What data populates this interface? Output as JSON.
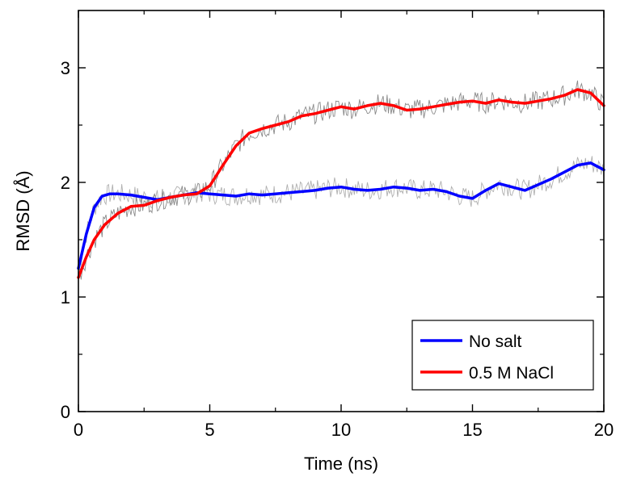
{
  "chart_data": {
    "type": "line",
    "title": "",
    "xlabel": "Time (ns)",
    "ylabel": "RMSD (Å)",
    "xlim": [
      0,
      20
    ],
    "ylim": [
      0,
      3.5
    ],
    "x_ticks": [
      0,
      5,
      10,
      15,
      20
    ],
    "x_tick_labels": [
      "0",
      "5",
      "10",
      "15",
      "20"
    ],
    "y_ticks": [
      0,
      1,
      2,
      3
    ],
    "y_tick_labels": [
      "0",
      "1",
      "2",
      "3"
    ],
    "grid": false,
    "legend": {
      "placement": "bottom-right",
      "entries": [
        "No salt",
        "0.5 M NaCl"
      ]
    },
    "series": [
      {
        "name": "No salt",
        "color": "#0000ff",
        "x": [
          0,
          0.3,
          0.6,
          0.9,
          1.2,
          1.5,
          2,
          2.5,
          3,
          3.5,
          4,
          4.5,
          5,
          5.5,
          6,
          6.5,
          7,
          7.5,
          8,
          8.5,
          9,
          9.5,
          10,
          10.5,
          11,
          11.5,
          12,
          12.5,
          13,
          13.5,
          14,
          14.5,
          15,
          15.5,
          16,
          16.5,
          17,
          17.5,
          18,
          18.5,
          19,
          19.5,
          20
        ],
        "values": [
          1.25,
          1.55,
          1.78,
          1.88,
          1.9,
          1.9,
          1.89,
          1.87,
          1.85,
          1.87,
          1.89,
          1.91,
          1.9,
          1.89,
          1.88,
          1.9,
          1.89,
          1.9,
          1.91,
          1.92,
          1.93,
          1.95,
          1.96,
          1.94,
          1.93,
          1.94,
          1.96,
          1.95,
          1.93,
          1.94,
          1.92,
          1.88,
          1.86,
          1.93,
          1.99,
          1.96,
          1.93,
          1.98,
          2.03,
          2.09,
          2.15,
          2.17,
          2.11
        ]
      },
      {
        "name": "0.5 M NaCl",
        "color": "#ff0000",
        "x": [
          0,
          0.3,
          0.6,
          1,
          1.5,
          2,
          2.5,
          3,
          3.5,
          4,
          4.5,
          5,
          5.5,
          6,
          6.5,
          7,
          7.5,
          8,
          8.5,
          9,
          9.5,
          10,
          10.5,
          11,
          11.5,
          12,
          12.5,
          13,
          13.5,
          14,
          14.5,
          15,
          15.5,
          16,
          16.5,
          17,
          17.5,
          18,
          18.5,
          19,
          19.5,
          20
        ],
        "values": [
          1.17,
          1.35,
          1.5,
          1.63,
          1.73,
          1.79,
          1.8,
          1.84,
          1.87,
          1.89,
          1.9,
          1.97,
          2.15,
          2.32,
          2.43,
          2.47,
          2.5,
          2.53,
          2.58,
          2.6,
          2.63,
          2.66,
          2.64,
          2.67,
          2.69,
          2.67,
          2.63,
          2.64,
          2.66,
          2.68,
          2.7,
          2.71,
          2.69,
          2.72,
          2.7,
          2.69,
          2.71,
          2.73,
          2.76,
          2.81,
          2.78,
          2.67
        ]
      }
    ]
  }
}
